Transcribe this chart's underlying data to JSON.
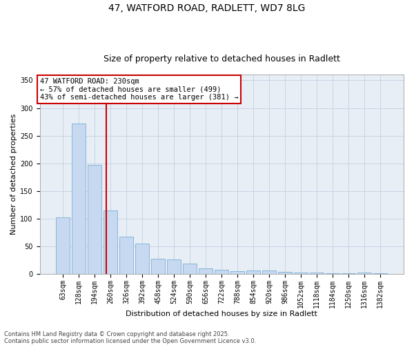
{
  "title_line1": "47, WATFORD ROAD, RADLETT, WD7 8LG",
  "title_line2": "Size of property relative to detached houses in Radlett",
  "xlabel": "Distribution of detached houses by size in Radlett",
  "ylabel": "Number of detached properties",
  "categories": [
    "63sqm",
    "128sqm",
    "194sqm",
    "260sqm",
    "326sqm",
    "392sqm",
    "458sqm",
    "524sqm",
    "590sqm",
    "656sqm",
    "722sqm",
    "788sqm",
    "854sqm",
    "920sqm",
    "986sqm",
    "1052sqm",
    "1118sqm",
    "1184sqm",
    "1250sqm",
    "1316sqm",
    "1382sqm"
  ],
  "values": [
    102,
    272,
    197,
    115,
    67,
    55,
    27,
    26,
    19,
    10,
    8,
    5,
    6,
    6,
    4,
    2,
    3,
    1,
    1,
    2,
    1
  ],
  "bar_color": "#c6d9f0",
  "bar_edge_color": "#7bafd4",
  "vline_x_index": 2.72,
  "vline_color": "#cc0000",
  "annotation_text": "47 WATFORD ROAD: 230sqm\n← 57% of detached houses are smaller (499)\n43% of semi-detached houses are larger (381) →",
  "annotation_box_color": "#ffffff",
  "annotation_box_edge_color": "#cc0000",
  "ylim": [
    0,
    360
  ],
  "yticks": [
    0,
    50,
    100,
    150,
    200,
    250,
    300,
    350
  ],
  "grid_color": "#c8d4e3",
  "background_color": "#e8eef6",
  "footer_text": "Contains HM Land Registry data © Crown copyright and database right 2025.\nContains public sector information licensed under the Open Government Licence v3.0.",
  "title_fontsize": 10,
  "subtitle_fontsize": 9,
  "axis_label_fontsize": 8,
  "tick_fontsize": 7,
  "annotation_fontsize": 7.5,
  "footer_fontsize": 6
}
